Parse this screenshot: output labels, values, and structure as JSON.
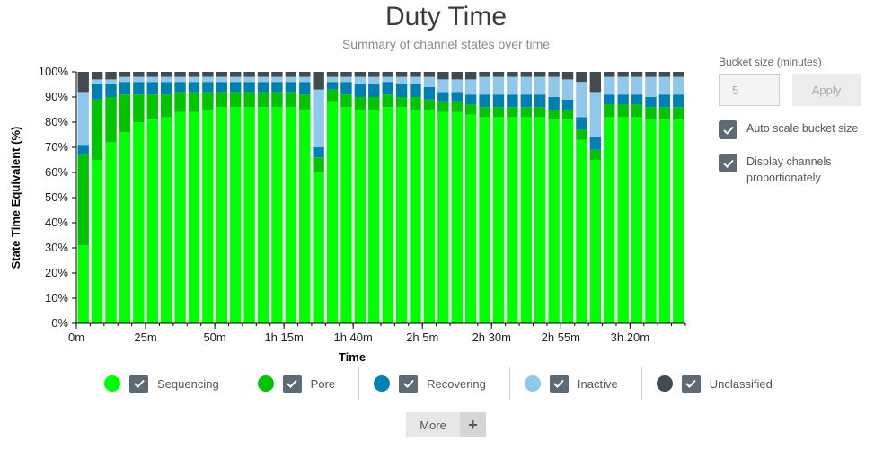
{
  "header": {
    "title": "Duty Time",
    "subtitle": "Summary of channel states over time"
  },
  "chart_data": {
    "type": "bar",
    "stacked": true,
    "xlabel": "Time",
    "ylabel": "State Time Equivalent (%)",
    "ylim": [
      0,
      100
    ],
    "yticks": [
      "0%",
      "10%",
      "20%",
      "30%",
      "40%",
      "50%",
      "60%",
      "70%",
      "80%",
      "90%",
      "100%"
    ],
    "xtick_labels": [
      "0m",
      "25m",
      "50m",
      "1h 15m",
      "1h 40m",
      "2h 5m",
      "2h 30m",
      "2h 55m",
      "3h 20m"
    ],
    "bucket_minutes": 5,
    "categories": [
      "0m",
      "5m",
      "10m",
      "15m",
      "20m",
      "25m",
      "30m",
      "35m",
      "40m",
      "45m",
      "50m",
      "55m",
      "60m",
      "65m",
      "70m",
      "75m",
      "80m",
      "85m",
      "90m",
      "95m",
      "100m",
      "105m",
      "110m",
      "115m",
      "120m",
      "125m",
      "130m",
      "135m",
      "140m",
      "145m",
      "150m",
      "155m",
      "160m",
      "165m",
      "170m",
      "175m",
      "180m",
      "185m",
      "190m",
      "195m",
      "200m",
      "205m",
      "210m",
      "215m"
    ],
    "series": [
      {
        "name": "Sequencing",
        "color": "#00ff00",
        "values": [
          31,
          65,
          72,
          76,
          80,
          81,
          82,
          84,
          84,
          85,
          86,
          86,
          86,
          86,
          86,
          86,
          85,
          60,
          88,
          86,
          85,
          85,
          86,
          86,
          85,
          85,
          84,
          84,
          83,
          82,
          82,
          82,
          82,
          82,
          81,
          81,
          73,
          65,
          82,
          82,
          82,
          81,
          81,
          81
        ]
      },
      {
        "name": "Pore",
        "color": "#00c400",
        "values": [
          36,
          24,
          18,
          15,
          11,
          10,
          9,
          8,
          8,
          7,
          6,
          6,
          6,
          6,
          6,
          6,
          6,
          6,
          5,
          5,
          5,
          5,
          5,
          4,
          5,
          4,
          4,
          4,
          4,
          4,
          4,
          4,
          4,
          4,
          4,
          4,
          4,
          4,
          5,
          5,
          5,
          5,
          5,
          5
        ]
      },
      {
        "name": "Recovering",
        "color": "#0080b2",
        "values": [
          4,
          6,
          5,
          5,
          5,
          5,
          5,
          4,
          4,
          4,
          4,
          4,
          4,
          4,
          4,
          4,
          5,
          4,
          3,
          5,
          5,
          5,
          5,
          5,
          5,
          5,
          4,
          4,
          4,
          5,
          5,
          5,
          5,
          5,
          5,
          4,
          5,
          5,
          4,
          4,
          4,
          4,
          5,
          5
        ]
      },
      {
        "name": "Inactive",
        "color": "#90c8ec",
        "values": [
          21,
          2,
          2,
          2,
          2,
          2,
          2,
          2,
          2,
          2,
          2,
          2,
          2,
          2,
          2,
          2,
          2,
          23,
          2,
          2,
          3,
          3,
          2,
          3,
          3,
          4,
          5,
          5,
          6,
          7,
          7,
          7,
          7,
          7,
          8,
          8,
          14,
          18,
          7,
          7,
          7,
          8,
          7,
          7
        ]
      },
      {
        "name": "Unclassified",
        "color": "#424c50",
        "values": [
          8,
          3,
          3,
          2,
          2,
          2,
          2,
          2,
          2,
          2,
          2,
          2,
          2,
          2,
          2,
          2,
          2,
          7,
          2,
          2,
          2,
          2,
          2,
          2,
          2,
          2,
          3,
          3,
          3,
          2,
          2,
          2,
          2,
          2,
          2,
          3,
          4,
          8,
          2,
          2,
          2,
          2,
          2,
          2
        ]
      }
    ]
  },
  "sidebar": {
    "bucket_label": "Bucket size (minutes)",
    "bucket_value": "5",
    "apply_label": "Apply",
    "options": [
      {
        "label": "Auto scale bucket size",
        "checked": true
      },
      {
        "label": "Display channels proportionately",
        "checked": true
      }
    ]
  },
  "legend": {
    "items": [
      {
        "label": "Sequencing",
        "color": "#00ff00"
      },
      {
        "label": "Pore",
        "color": "#00c400"
      },
      {
        "label": "Recovering",
        "color": "#0080b2"
      },
      {
        "label": "Inactive",
        "color": "#90c8ec"
      },
      {
        "label": "Unclassified",
        "color": "#424c50"
      }
    ]
  },
  "footer": {
    "more_label": "More",
    "plus_label": "+"
  }
}
